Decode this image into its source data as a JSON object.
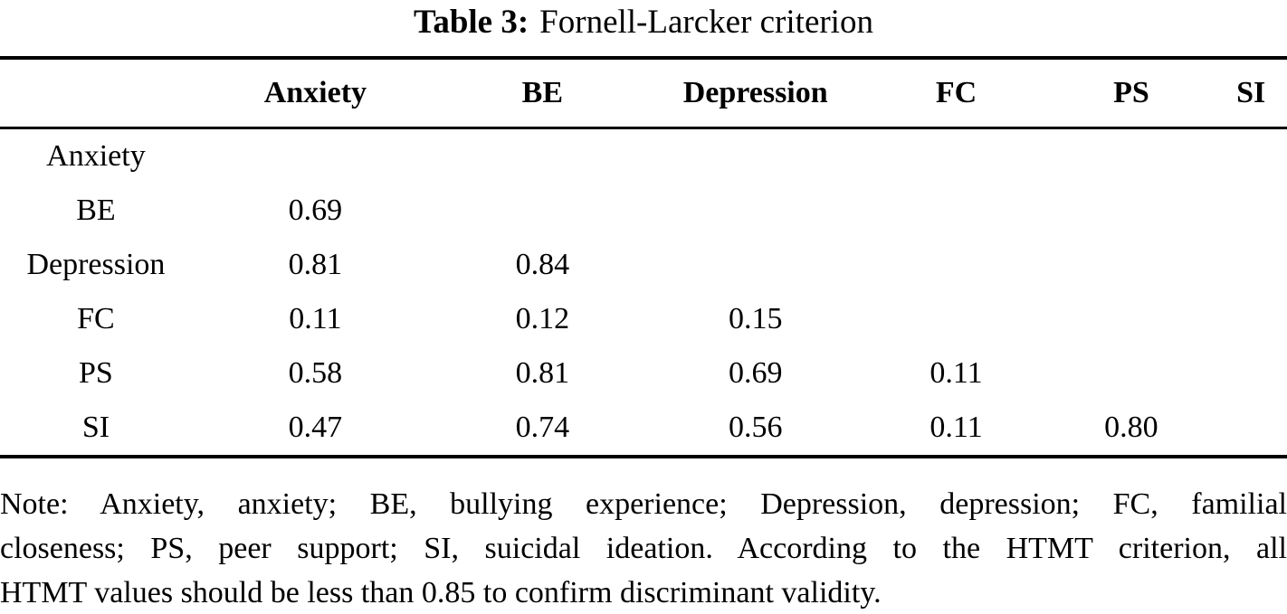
{
  "caption": {
    "label": "Table 3:",
    "text": "Fornell-Larcker criterion"
  },
  "table": {
    "column_headers": [
      "",
      "Anxiety",
      "BE",
      "Depression",
      "FC",
      "PS",
      "SI"
    ],
    "rows": [
      {
        "label": "Anxiety",
        "values": [
          "",
          "",
          "",
          "",
          "",
          ""
        ]
      },
      {
        "label": "BE",
        "values": [
          "0.69",
          "",
          "",
          "",
          "",
          ""
        ]
      },
      {
        "label": "Depression",
        "values": [
          "0.81",
          "0.84",
          "",
          "",
          "",
          ""
        ]
      },
      {
        "label": "FC",
        "values": [
          "0.11",
          "0.12",
          "0.15",
          "",
          "",
          ""
        ]
      },
      {
        "label": "PS",
        "values": [
          "0.58",
          "0.81",
          "0.69",
          "0.11",
          "",
          ""
        ]
      },
      {
        "label": "SI",
        "values": [
          "0.47",
          "0.74",
          "0.56",
          "0.11",
          "0.80",
          ""
        ]
      }
    ]
  },
  "note": {
    "lines": [
      "Note: Anxiety, anxiety; BE, bullying experience; Depression, depression; FC, familial",
      "closeness; PS, peer support; SI, suicidal ideation. According to the HTMT criterion, all",
      "HTMT values should be less than 0.85 to confirm discriminant validity."
    ],
    "full_text": "Note: Anxiety, anxiety; BE, bullying experience; Depression, depression; FC, familial closeness; PS, peer support; SI, suicidal ideation. According to the HTMT criterion, all HTMT values should be less than 0.85 to confirm discriminant validity."
  },
  "colors": {
    "text": "#000000",
    "background": "#ffffff",
    "rule": "#000000"
  }
}
